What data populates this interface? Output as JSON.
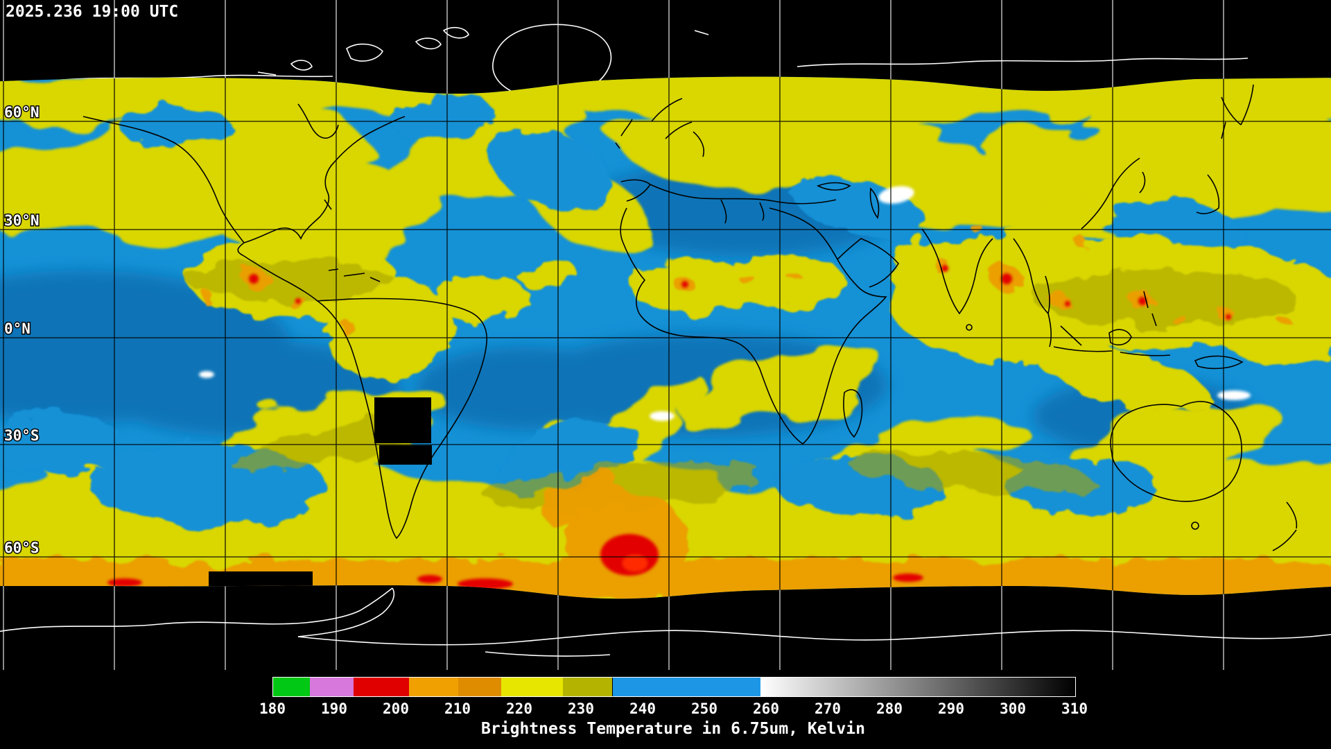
{
  "header": {
    "timestamp": "2025.236 19:00 UTC"
  },
  "map": {
    "lat_labels": [
      {
        "text": "60°N"
      },
      {
        "text": "30°N"
      },
      {
        "text": "0°N"
      },
      {
        "text": "30°S"
      },
      {
        "text": "60°S"
      }
    ]
  },
  "legend": {
    "caption": "Brightness Temperature in 6.75um, Kelvin",
    "quantity": "Brightness Temperature",
    "wavelength": "6.75um",
    "unit": "Kelvin",
    "min": 180,
    "max": 310,
    "ticks": [
      180,
      190,
      200,
      210,
      220,
      230,
      240,
      250,
      260,
      270,
      280,
      290,
      300,
      310
    ],
    "segments": [
      {
        "from": 180,
        "to": 186,
        "color": "#00c814"
      },
      {
        "from": 186,
        "to": 193,
        "color": "#d678dc"
      },
      {
        "from": 193,
        "to": 202,
        "color": "#e00000"
      },
      {
        "from": 202,
        "to": 210,
        "color": "#f0a000"
      },
      {
        "from": 210,
        "to": 217,
        "color": "#e08c00"
      },
      {
        "from": 217,
        "to": 227,
        "color": "#e6e600"
      },
      {
        "from": 227,
        "to": 235,
        "color": "#b4b400"
      },
      {
        "from": 235,
        "to": 259,
        "color": "#1e96e6"
      },
      {
        "from": 259,
        "to": 310,
        "gradient": [
          "#ffffff",
          "#000000"
        ]
      }
    ],
    "field_colors": {
      "moist_mid": "#d9d600",
      "dry": "#1591d6",
      "very_dry": "#0d6fb2",
      "cold_cloud_tops": "#ec9e00",
      "coldest_tops": "#e30000",
      "warm_surface": "#ffffff",
      "no_data": "#000000"
    }
  }
}
